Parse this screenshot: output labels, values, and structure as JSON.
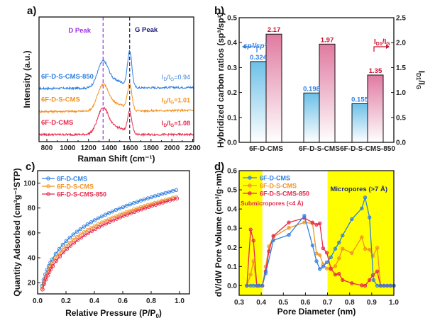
{
  "chart_data": [
    {
      "panel": "a)",
      "type": "line",
      "xlabel": "Raman Shift (cm⁻¹)",
      "ylabel": "Intensity (a.u.)",
      "xlim": [
        725,
        2210
      ],
      "xticks": [
        800,
        1000,
        1200,
        1400,
        1600,
        1800,
        2000,
        2200
      ],
      "yticks": [],
      "annotations": [
        {
          "text": "D Peak",
          "x": 1340,
          "color": "#9b30e0"
        },
        {
          "text": "G Peak",
          "x": 1595,
          "color": "#1a1a7a"
        }
      ],
      "series": [
        {
          "name": "6F-D-S-CMS-850",
          "color": "#2f7fe0",
          "ratio_label": "I_D/I_G=0.94",
          "ratio_main": "I",
          "ratio_sub1": "D",
          "ratio_mid": "/I",
          "ratio_sub2": "G",
          "ratio_val": "=0.94",
          "offset": 2.0,
          "d_height": 1.15,
          "g_height": 1.55,
          "baseline_drift": 0.05
        },
        {
          "name": "6F-D-S-CMS",
          "color": "#f39221",
          "ratio_label": "I_D/I_G=1.01",
          "ratio_main": "I",
          "ratio_sub1": "D",
          "ratio_mid": "/I",
          "ratio_sub2": "G",
          "ratio_val": "=1.01",
          "offset": 1.0,
          "d_height": 1.15,
          "g_height": 1.15,
          "baseline_drift": 0.05
        },
        {
          "name": "6F-D-CMS",
          "color": "#e8284a",
          "ratio_label": "I_D/I_G=1.08",
          "ratio_main": "I",
          "ratio_sub1": "D",
          "ratio_mid": "/I",
          "ratio_sub2": "G",
          "ratio_val": "=1.08",
          "offset": 0.0,
          "d_height": 1.15,
          "g_height": 0.97,
          "baseline_drift": 0.0
        }
      ]
    },
    {
      "panel": "b)",
      "type": "bar",
      "categories": [
        "6F-D-CMS",
        "6F-D-S-CMS",
        "6F-D-S-CMS-850"
      ],
      "ylabel": "Hybridized carbon ratios (sp³/sp²)",
      "y2label": "I_D1/I_G",
      "ylim": [
        0,
        0.5
      ],
      "y2lim": [
        0,
        2.5
      ],
      "yticks": [
        "0.0",
        "0.1",
        "0.2",
        "0.3",
        "0.4",
        "0.5"
      ],
      "y2ticks": [
        "0.0",
        "0.5",
        "1.0",
        "1.5",
        "2.0",
        "2.5"
      ],
      "series": [
        {
          "name": "sp3/sp2",
          "axis": "left",
          "color": "#2d7fe0",
          "fill": "#7ec8ea",
          "values": [
            0.324,
            0.198,
            0.155
          ],
          "labels": [
            "0.324",
            "0.198",
            "0.155"
          ]
        },
        {
          "name": "I_D1/I_G",
          "axis": "right",
          "color": "#c8102e",
          "fill": "#e07aa0",
          "values": [
            2.17,
            1.97,
            1.35
          ],
          "labels": [
            "2.17",
            "1.97",
            "1.35"
          ]
        }
      ],
      "legend_left": {
        "text": "sp³/sp²",
        "arrow": "left"
      },
      "legend_right": {
        "text": "I_D1/I_G",
        "arrow": "right"
      }
    },
    {
      "panel": "c)",
      "type": "line",
      "xlabel": "Relative Pressure (P/P₀)",
      "ylabel": "Quantity Adsorbed (cm³g⁻¹STP)",
      "xlim": [
        0,
        1.07
      ],
      "ylim": [
        11,
        110
      ],
      "xticks": [
        "0.0",
        "0.2",
        "0.4",
        "0.6",
        "0.8",
        "1.0"
      ],
      "yticks": [
        "20",
        "40",
        "60",
        "80",
        "100"
      ],
      "legend": "top-left",
      "series": [
        {
          "name": "6F-D-CMS",
          "color": "#2f7fe0",
          "qmax": 138,
          "k": 2.45,
          "p0": 0.03,
          "q0": 17
        },
        {
          "name": "6F-D-S-CMS",
          "color": "#f39221",
          "qmax": 130,
          "k": 2.05,
          "p0": 0.03,
          "q0": 15
        },
        {
          "name": "6F-D-S-CMS-850",
          "color": "#e8284a",
          "qmax": 128,
          "k": 1.85,
          "p0": 0.035,
          "q0": 14
        }
      ]
    },
    {
      "panel": "d)",
      "type": "line",
      "xlabel": "Pore Diameter (nm)",
      "ylabel": "dV/dW Pore Volume (cm³/g·nm)",
      "xlim": [
        0.3,
        1.0
      ],
      "ylim": [
        -0.05,
        0.6
      ],
      "xticks": [
        "0.3",
        "0.4",
        "0.5",
        "0.6",
        "0.7",
        "0.8",
        "0.9",
        "1.0"
      ],
      "yticks": [
        "0.0",
        "0.1",
        "0.2",
        "0.3",
        "0.4",
        "0.5",
        "0.6"
      ],
      "legend": "top-left",
      "shaded_regions": [
        {
          "from": 0.3,
          "to": 0.405,
          "color": "#ffff00",
          "label": "Submicropores (<4 Å)",
          "label_color": "#e8284a"
        },
        {
          "from": 0.7,
          "to": 1.0,
          "color": "#ffff00",
          "label": "Micropores (>7 Å)",
          "label_color": "#1a2a8a"
        }
      ],
      "series": [
        {
          "name": "6F-D-CMS",
          "color": "#2f7fe0",
          "line_color_right": "#1f8a6a",
          "x": [
            0.335,
            0.352,
            0.365,
            0.38,
            0.39,
            0.405,
            0.42,
            0.455,
            0.525,
            0.595,
            0.632,
            0.65,
            0.665,
            0.68,
            0.697,
            0.715,
            0.735,
            0.752,
            0.768,
            0.81,
            0.855,
            0.87,
            0.89,
            0.908,
            0.925,
            0.94,
            0.955,
            0.97,
            0.985,
            1.0
          ],
          "y": [
            0.0,
            0.0,
            0.0,
            0.0,
            0.0,
            0.0,
            0.065,
            0.237,
            0.265,
            0.365,
            0.21,
            0.128,
            0.087,
            0.1,
            0.122,
            0.148,
            0.193,
            0.225,
            0.262,
            0.347,
            0.403,
            0.46,
            0.356,
            0.03,
            0.0,
            0.0,
            0.0,
            0.0,
            0.0,
            0.0
          ]
        },
        {
          "name": "6F-D-S-CMS",
          "color": "#f39221",
          "x": [
            0.335,
            0.352,
            0.365,
            0.38,
            0.39,
            0.405,
            0.42,
            0.435,
            0.455,
            0.525,
            0.595,
            0.632,
            0.65,
            0.665,
            0.68,
            0.697,
            0.715,
            0.735,
            0.752,
            0.768,
            0.81,
            0.855,
            0.87,
            0.89,
            0.905,
            0.925,
            0.94,
            0.955,
            0.97,
            0.985,
            1.0
          ],
          "y": [
            0.0,
            0.058,
            0.128,
            0.0,
            0.0,
            0.0,
            0.1,
            0.205,
            0.255,
            0.302,
            0.33,
            0.325,
            0.168,
            0.16,
            0.112,
            0.09,
            0.085,
            0.102,
            0.143,
            0.193,
            0.17,
            0.253,
            0.192,
            0.188,
            0.155,
            0.198,
            0.0,
            0.0,
            0.0,
            0.0,
            0.0
          ]
        },
        {
          "name": "6F-D-S-CMS-850",
          "color": "#e8284a",
          "x": [
            0.335,
            0.352,
            0.365,
            0.38,
            0.39,
            0.405,
            0.42,
            0.435,
            0.455,
            0.525,
            0.595,
            0.632,
            0.65,
            0.665,
            0.68,
            0.697,
            0.715,
            0.735,
            0.752,
            0.768,
            0.81,
            0.855,
            0.87,
            0.89,
            0.905,
            0.925,
            0.94,
            0.955,
            0.97,
            0.985,
            1.0
          ],
          "y": [
            0.0,
            0.293,
            0.235,
            0.0,
            0.0,
            0.0,
            0.075,
            0.18,
            0.26,
            0.33,
            0.353,
            0.33,
            0.318,
            0.325,
            0.195,
            0.172,
            0.09,
            0.058,
            0.062,
            0.03,
            0.013,
            0.002,
            0.0,
            0.03,
            0.055,
            0.075,
            0.0,
            0.0,
            0.0,
            0.0,
            0.0
          ]
        }
      ]
    }
  ]
}
